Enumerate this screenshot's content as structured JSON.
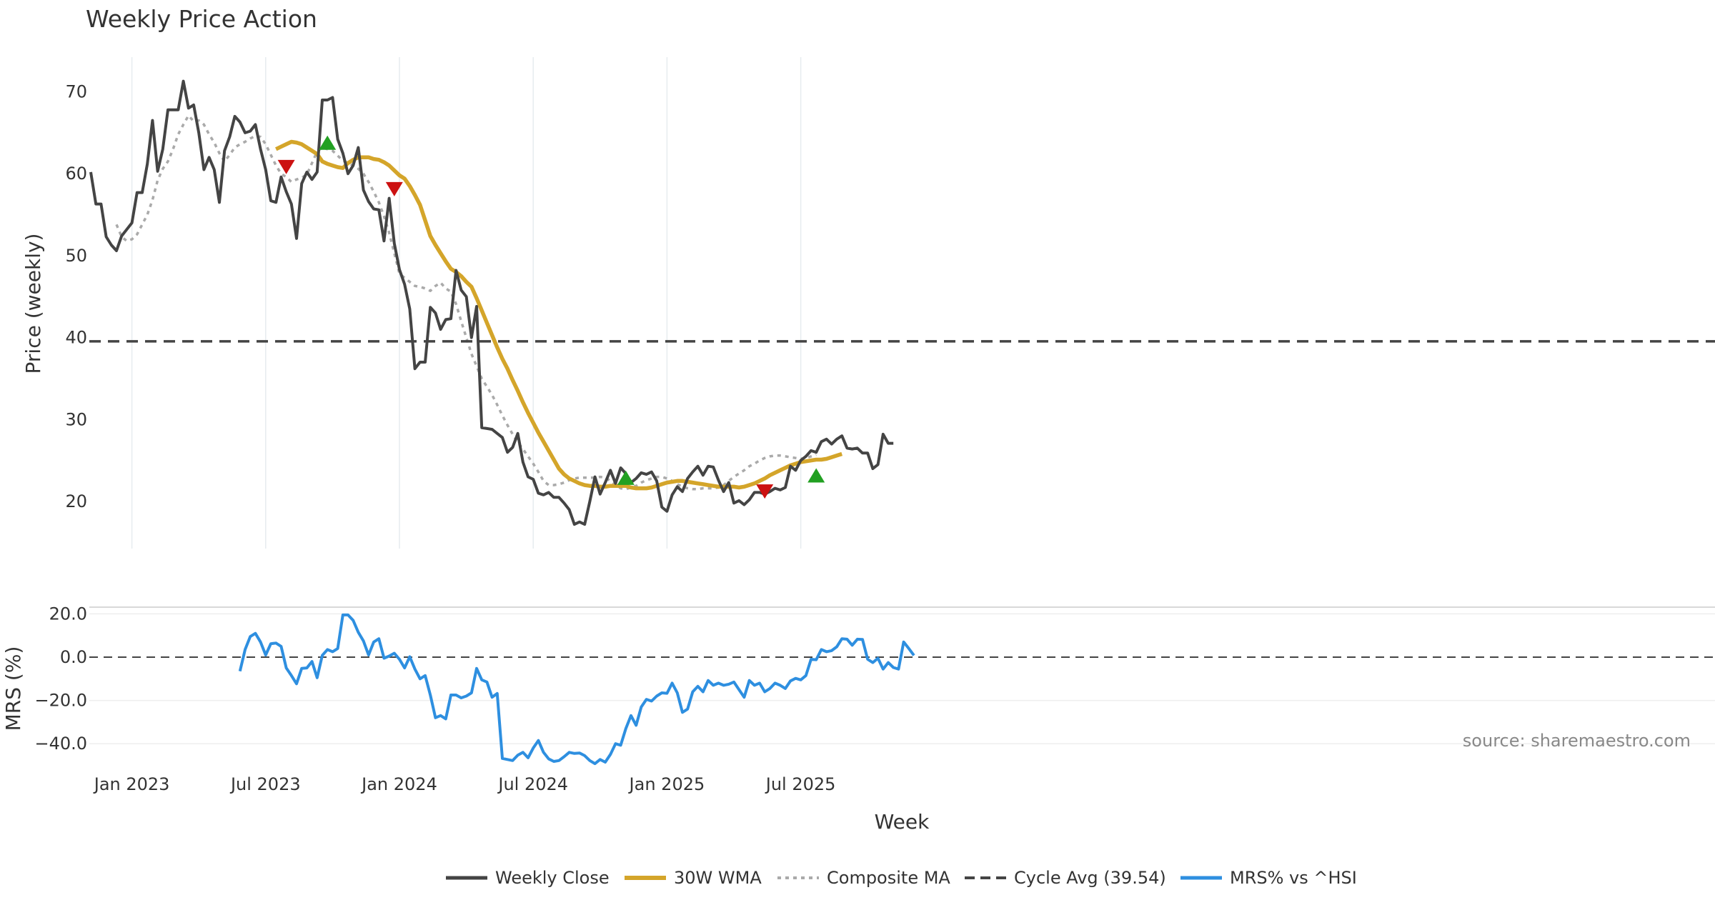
{
  "chart_data": {
    "type": "line",
    "title": "Weekly Price Action",
    "xlabel": "Week",
    "x_ticks": [
      "Jan 2023",
      "Jul 2023",
      "Jan 2024",
      "Jul 2024",
      "Jan 2025",
      "Jul 2025"
    ],
    "weeks_range": [
      "2022-11-07",
      "2025-10-13"
    ],
    "price_panel": {
      "ylabel": "Price (weekly)",
      "ylim": [
        14,
        74
      ],
      "y_ticks": [
        20,
        30,
        40,
        50,
        60,
        70
      ],
      "grid": true
    },
    "mrs_panel": {
      "ylabel": "MRS (%)",
      "ylim": [
        -50,
        25
      ],
      "y_ticks": [
        "20.0",
        "0.0",
        "−20.0",
        "−40.0"
      ],
      "y_tick_values": [
        20,
        0,
        -20,
        -40
      ],
      "zero_line": true,
      "grid": true
    },
    "series": [
      {
        "name": "Weekly Close",
        "color": "#444444",
        "start_week": 0,
        "values": [
          60.2,
          56.3,
          56.3,
          52.3,
          51.3,
          50.6,
          52.4,
          53.2,
          54.0,
          57.7,
          57.7,
          61.2,
          66.5,
          60.3,
          63.0,
          67.8,
          67.8,
          67.8,
          71.3,
          68.0,
          68.4,
          65.0,
          60.5,
          62.0,
          60.5,
          56.5,
          62.8,
          64.5,
          67.0,
          66.3,
          65.0,
          65.2,
          66.0,
          63.0,
          60.5,
          56.7,
          56.5,
          59.6,
          57.8,
          56.3,
          52.1,
          58.8,
          60.2,
          59.3,
          60.2,
          69.0,
          69.0,
          69.3,
          64.2,
          62.5,
          60.0,
          61.0,
          63.2,
          58.0,
          56.6,
          55.7,
          55.6,
          51.8,
          57.0,
          51.5,
          48.3,
          46.5,
          43.5,
          36.2,
          37.0,
          37.0,
          43.7,
          43.0,
          41.0,
          42.2,
          42.3,
          48.2,
          45.8,
          45.0,
          40.0,
          43.8,
          29.0,
          28.9,
          28.8,
          28.3,
          27.8,
          26.0,
          26.6,
          28.3,
          24.8,
          23.0,
          22.7,
          21.0,
          20.8,
          21.1,
          20.5,
          20.5,
          19.8,
          19.0,
          17.2,
          17.5,
          17.2,
          20.0,
          23.0,
          20.9,
          22.3,
          23.8,
          22.2,
          24.1,
          23.4,
          22.3,
          22.8,
          23.5,
          23.3,
          23.6,
          22.5,
          19.3,
          18.8,
          20.8,
          21.8,
          21.2,
          22.8,
          23.6,
          24.3,
          23.2,
          24.3,
          24.2,
          22.6,
          21.2,
          22.3,
          19.8,
          20.1,
          19.6,
          20.2,
          21.1,
          21.1,
          20.9,
          21.2,
          21.6,
          21.4,
          21.7,
          24.3,
          23.8,
          25.0,
          25.5,
          26.2,
          26.0,
          27.3,
          27.6,
          27.0,
          27.6,
          28.0,
          26.5,
          26.4,
          26.5,
          25.9,
          25.9,
          24.0,
          24.5,
          28.2,
          27.1,
          27.1
        ]
      },
      {
        "name": "30W WMA",
        "color": "#d4a52a",
        "start_week": 36,
        "values": [
          63.0,
          63.3,
          63.6,
          63.9,
          63.8,
          63.6,
          63.2,
          62.8,
          62.4,
          61.5,
          61.2,
          61.0,
          60.8,
          60.7,
          61.3,
          61.7,
          62.0,
          62.0,
          62.0,
          61.8,
          61.7,
          61.4,
          61.0,
          60.4,
          59.8,
          59.4,
          58.5,
          57.4,
          56.2,
          54.3,
          52.4,
          51.3,
          50.3,
          49.3,
          48.4,
          48.0,
          47.5,
          46.8,
          46.2,
          44.8,
          43.3,
          41.8,
          40.3,
          38.8,
          37.4,
          36.2,
          34.8,
          33.5,
          32.1,
          30.8,
          29.6,
          28.4,
          27.3,
          26.2,
          25.1,
          24.0,
          23.3,
          22.8,
          22.5,
          22.2,
          22.0,
          21.9,
          21.9,
          21.8,
          21.8,
          21.9,
          21.9,
          21.9,
          21.9,
          21.7,
          21.6,
          21.6,
          21.6,
          21.7,
          21.9,
          22.1,
          22.3,
          22.4,
          22.5,
          22.5,
          22.4,
          22.3,
          22.2,
          22.1,
          22.0,
          21.9,
          21.8,
          21.8,
          21.8,
          21.8,
          21.7,
          21.8,
          22.0,
          22.2,
          22.5,
          22.8,
          23.2,
          23.5,
          23.8,
          24.1,
          24.4,
          24.6,
          24.8,
          24.9,
          25.0,
          25.1,
          25.1,
          25.2,
          25.4,
          25.6,
          25.8
        ]
      },
      {
        "name": "Composite MA",
        "color": "#aaaaaa",
        "start_week": 5,
        "values": [
          53.8,
          52.3,
          51.8,
          52.0,
          52.6,
          53.8,
          55.0,
          56.8,
          59.2,
          60.6,
          61.5,
          63.0,
          64.8,
          66.0,
          67.1,
          66.4,
          66.5,
          66.0,
          64.8,
          63.8,
          62.5,
          61.5,
          62.3,
          63.2,
          63.6,
          63.9,
          64.3,
          64.6,
          64.5,
          63.6,
          62.3,
          61.0,
          60.0,
          59.6,
          59.0,
          59.3,
          59.5,
          59.9,
          61.3,
          62.7,
          63.2,
          63.0,
          62.8,
          62.2,
          61.6,
          61.3,
          61.0,
          60.6,
          60.0,
          59.0,
          57.8,
          56.5,
          54.8,
          52.8,
          50.3,
          47.8,
          47.3,
          46.8,
          46.3,
          46.2,
          46.0,
          45.7,
          46.3,
          46.7,
          46.0,
          45.6,
          44.1,
          42.0,
          40.0,
          38.0,
          36.5,
          35.0,
          34.0,
          33.0,
          31.8,
          30.5,
          29.3,
          28.2,
          27.2,
          26.4,
          25.5,
          24.6,
          23.6,
          22.5,
          22.0,
          22.0,
          22.1,
          22.3,
          22.6,
          22.8,
          22.9,
          22.9,
          22.9,
          22.9,
          23.0,
          22.9,
          22.5,
          22.0,
          21.6,
          21.5,
          21.7,
          21.9,
          22.3,
          22.6,
          22.8,
          23.0,
          23.0,
          22.8,
          22.5,
          22.1,
          21.8,
          21.6,
          21.5,
          21.5,
          21.6,
          21.6,
          21.6,
          21.7,
          22.0,
          22.5,
          23.0,
          23.4,
          23.8,
          24.3,
          24.6,
          25.0,
          25.3,
          25.5,
          25.6,
          25.6,
          25.5,
          25.4,
          25.3,
          25.2,
          25.3,
          25.5,
          25.7
        ]
      },
      {
        "name": "Cycle Avg (39.54)",
        "color": "#444444",
        "constant": 39.54
      },
      {
        "name": "MRS% vs ^HSI",
        "color": "#2e8fe0",
        "panel": "mrs",
        "start_week": 29,
        "values": [
          -6.5,
          3.5,
          9.5,
          11.0,
          7.0,
          1.0,
          6.2,
          6.5,
          5.0,
          -5.0,
          -8.5,
          -12.3,
          -5.2,
          -5.0,
          -2.0,
          -9.5,
          0.8,
          3.5,
          2.5,
          4.0,
          19.5,
          19.5,
          17.0,
          11.5,
          7.5,
          1.0,
          7.0,
          8.5,
          -0.5,
          0.5,
          1.8,
          -1.0,
          -5.0,
          0.2,
          -5.5,
          -10.0,
          -8.5,
          -17.5,
          -28.0,
          -27.0,
          -28.5,
          -17.5,
          -17.5,
          -18.8,
          -18.0,
          -16.5,
          -5.2,
          -10.5,
          -11.5,
          -18.5,
          -16.8,
          -46.8,
          -47.3,
          -47.8,
          -45.3,
          -44.0,
          -46.5,
          -42.0,
          -38.5,
          -44.0,
          -47.0,
          -48.2,
          -47.8,
          -46.0,
          -44.0,
          -44.5,
          -44.3,
          -45.5,
          -47.8,
          -49.2,
          -47.3,
          -48.5,
          -45.0,
          -40.0,
          -40.7,
          -33.0,
          -27.0,
          -31.5,
          -23.0,
          -19.5,
          -20.3,
          -18.0,
          -16.5,
          -16.7,
          -12.0,
          -16.5,
          -25.5,
          -24.0,
          -16.0,
          -13.5,
          -16.0,
          -10.8,
          -13.0,
          -12.0,
          -13.0,
          -12.5,
          -11.5,
          -15.0,
          -18.5,
          -10.8,
          -13.0,
          -12.0,
          -16.0,
          -14.5,
          -12.0,
          -13.0,
          -14.5,
          -11.0,
          -9.8,
          -10.5,
          -8.5,
          -1.0,
          -1.2,
          3.5,
          2.5,
          3.0,
          4.8,
          8.5,
          8.3,
          5.5,
          8.3,
          8.2,
          -1.0,
          -2.5,
          -0.5,
          -5.5,
          -2.5,
          -4.8,
          -5.5,
          7.0,
          4.0,
          0.8
        ]
      }
    ],
    "signals": {
      "buy": [
        {
          "week": 46,
          "value": 63.7
        },
        {
          "week": 104,
          "value": 22.8
        },
        {
          "week": 141,
          "value": 23.1
        }
      ],
      "sell": [
        {
          "week": 38,
          "value": 60.9
        },
        {
          "week": 59,
          "value": 58.2
        },
        {
          "week": 131,
          "value": 21.3
        }
      ],
      "buy_color": "#22a022",
      "sell_color": "#cc1111"
    },
    "legend": {
      "position": "bottom-center",
      "entries": [
        "Weekly Close",
        "30W WMA",
        "Composite MA",
        "Cycle Avg (39.54)",
        "MRS% vs ^HSI"
      ]
    },
    "annotation": "source: sharemaestro.com"
  }
}
